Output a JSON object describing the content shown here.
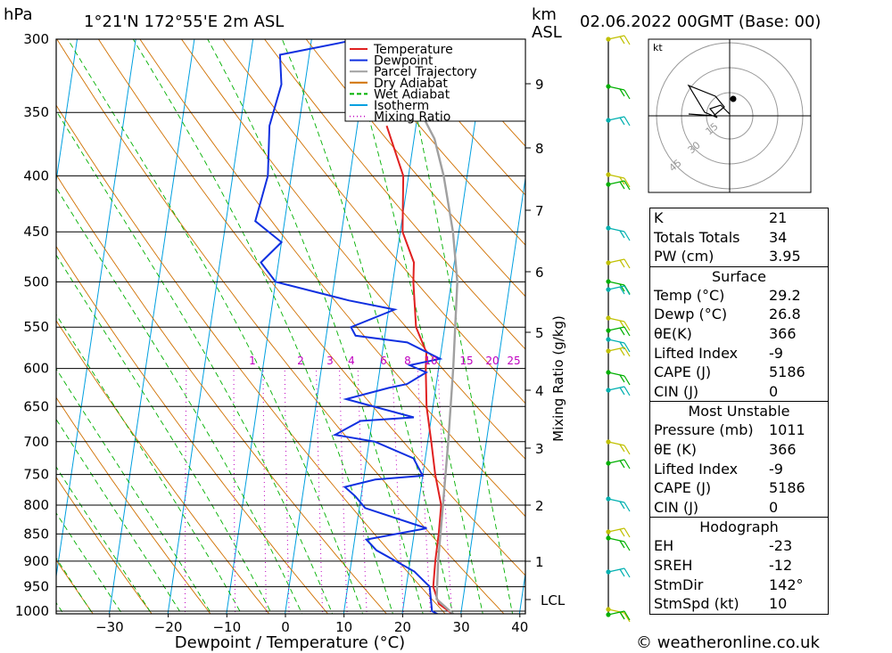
{
  "header": {
    "pressure_unit": "hPa",
    "location": "1°21'N  172°55'E  2m  ASL",
    "height_unit_1": "km",
    "height_unit_2": "ASL",
    "datetime": "02.06.2022  00GMT  (Base: 00)"
  },
  "footer": {
    "credit": "© weatheronline.co.uk"
  },
  "hodograph": {
    "unit": "kt",
    "ring_labels": [
      "15",
      "30",
      "45"
    ]
  },
  "chart_data": {
    "type": "line",
    "xlabel": "Dewpoint / Temperature (°C)",
    "ylabel_right": "Mixing Ratio (g/kg)",
    "x_ticks": [
      -30,
      -20,
      -10,
      0,
      10,
      20,
      30,
      40
    ],
    "pressure_levels": [
      300,
      350,
      400,
      450,
      500,
      550,
      600,
      650,
      700,
      750,
      800,
      850,
      900,
      950,
      1000
    ],
    "height_ticks_km": [
      1,
      2,
      3,
      4,
      5,
      6,
      7,
      8,
      9
    ],
    "lcl_label": "LCL",
    "mixing_ratio_labels": [
      "1",
      "2",
      "3",
      "4",
      "6",
      "8",
      "10",
      "15",
      "20",
      "25"
    ],
    "legend": [
      {
        "name": "Temperature",
        "color": "#e02020"
      },
      {
        "name": "Dewpoint",
        "color": "#1030e0"
      },
      {
        "name": "Parcel Trajectory",
        "color": "#a0a0a0"
      },
      {
        "name": "Dry Adiabat",
        "color": "#d07000"
      },
      {
        "name": "Wet Adiabat",
        "color": "#00b000"
      },
      {
        "name": "Isotherm",
        "color": "#00a0e0"
      },
      {
        "name": "Mixing Ratio",
        "color": "#c000c0"
      }
    ],
    "series": [
      {
        "name": "Temperature",
        "points": [
          [
            29.2,
            1011
          ],
          [
            26,
            985
          ],
          [
            24.6,
            950
          ],
          [
            24.3,
            900
          ],
          [
            24.2,
            850
          ],
          [
            23.9,
            800
          ],
          [
            22.1,
            750
          ],
          [
            20.6,
            700
          ],
          [
            18.9,
            650
          ],
          [
            17.8,
            600
          ],
          [
            17.5,
            580
          ],
          [
            15.1,
            550
          ],
          [
            13.5,
            500
          ],
          [
            13.1,
            480
          ],
          [
            10.4,
            450
          ],
          [
            9.1,
            400
          ],
          [
            5,
            360
          ]
        ]
      },
      {
        "name": "Dewpoint",
        "points": [
          [
            26.8,
            1011
          ],
          [
            25,
            1000
          ],
          [
            24,
            950
          ],
          [
            21,
            920
          ],
          [
            14,
            880
          ],
          [
            12,
            860
          ],
          [
            22,
            840
          ],
          [
            11,
            805
          ],
          [
            9,
            785
          ],
          [
            7,
            770
          ],
          [
            12,
            758
          ],
          [
            20,
            752
          ],
          [
            18,
            725
          ],
          [
            11,
            700
          ],
          [
            4,
            690
          ],
          [
            8,
            670
          ],
          [
            17,
            665
          ],
          [
            5,
            640
          ],
          [
            12,
            625
          ],
          [
            15,
            620
          ],
          [
            18,
            605
          ],
          [
            15,
            596
          ],
          [
            20,
            588
          ],
          [
            14,
            568
          ],
          [
            5,
            560
          ],
          [
            4,
            550
          ],
          [
            11,
            530
          ],
          [
            3,
            520
          ],
          [
            -10,
            500
          ],
          [
            -13,
            480
          ],
          [
            -10,
            460
          ],
          [
            -15,
            440
          ],
          [
            -14,
            400
          ],
          [
            -15,
            360
          ],
          [
            -14,
            330
          ],
          [
            -15,
            310
          ],
          [
            -2,
            300
          ]
        ]
      },
      {
        "name": "Parcel Trajectory",
        "points": [
          [
            29.2,
            1011
          ],
          [
            25.5,
            975
          ],
          [
            24.8,
            900
          ],
          [
            24.2,
            800
          ],
          [
            23.5,
            700
          ],
          [
            22.5,
            600
          ],
          [
            21,
            500
          ],
          [
            19,
            450
          ],
          [
            16,
            400
          ],
          [
            13.5,
            370
          ],
          [
            10.5,
            350
          ]
        ]
      }
    ],
    "wind_barb_colors": [
      "#c0c000",
      "#00b000",
      "#00b0b0"
    ]
  },
  "indices": {
    "rows": [
      {
        "label": "K",
        "value": "21"
      },
      {
        "label": "Totals Totals",
        "value": "34"
      },
      {
        "label": "PW (cm)",
        "value": "3.95"
      }
    ],
    "surface": {
      "title": "Surface",
      "rows": [
        {
          "label": "Temp (°C)",
          "value": "29.2"
        },
        {
          "label": "Dewp (°C)",
          "value": "26.8"
        },
        {
          "label": "θE(K)",
          "value": "366"
        },
        {
          "label": "Lifted Index",
          "value": "-9"
        },
        {
          "label": "CAPE (J)",
          "value": "5186"
        },
        {
          "label": "CIN (J)",
          "value": "0"
        }
      ]
    },
    "most_unstable": {
      "title": "Most Unstable",
      "rows": [
        {
          "label": "Pressure (mb)",
          "value": "1011"
        },
        {
          "label": "θE (K)",
          "value": "366"
        },
        {
          "label": "Lifted Index",
          "value": "-9"
        },
        {
          "label": "CAPE (J)",
          "value": "5186"
        },
        {
          "label": "CIN (J)",
          "value": "0"
        }
      ]
    },
    "hodograph": {
      "title": "Hodograph",
      "rows": [
        {
          "label": "EH",
          "value": "-23"
        },
        {
          "label": "SREH",
          "value": "-12"
        },
        {
          "label": "StmDir",
          "value": "142°"
        },
        {
          "label": "StmSpd (kt)",
          "value": "10"
        }
      ]
    }
  }
}
